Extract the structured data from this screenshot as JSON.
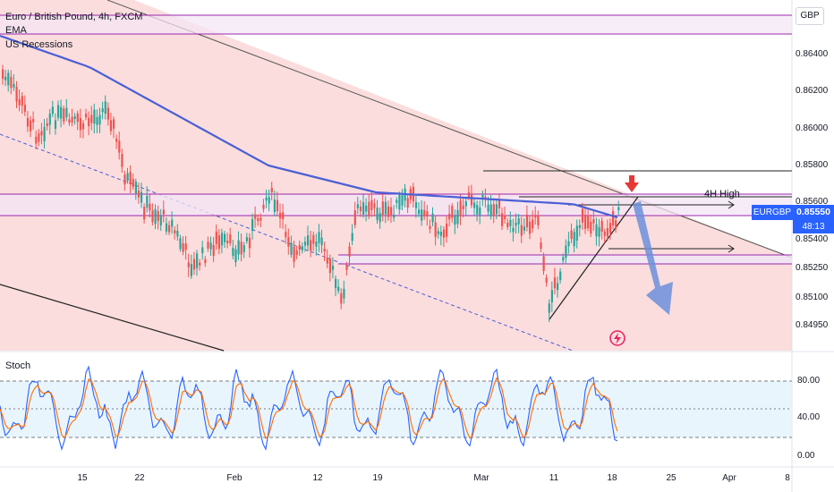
{
  "legend": {
    "symbol_line": "Euro / British Pound, 4h, FXCM",
    "indicator_1": "EMA",
    "indicator_2": "US Recessions"
  },
  "price_axis": {
    "currency": "GBP",
    "ticks": [
      "0.86400",
      "0.86200",
      "0.86000",
      "0.85800",
      "0.85600",
      "0.85400",
      "0.85250",
      "0.85100",
      "0.84950"
    ]
  },
  "price_tag": {
    "symbol": "EURGBP",
    "price": "0.85550",
    "countdown": "48:13",
    "color": "#2962ff"
  },
  "annotation": {
    "label": "4H High"
  },
  "oscillator": {
    "title": "Stoch",
    "ticks": [
      "80.00",
      "40.00",
      "0.00"
    ]
  },
  "time_axis": {
    "labels": [
      "15",
      "22",
      "Feb",
      "12",
      "19",
      "Mar",
      "11",
      "18",
      "25",
      "Apr",
      "8"
    ]
  },
  "colors": {
    "up": "#26a69a",
    "down": "#ef5350",
    "ema": "#4a60d6",
    "channel_fill": "#f9d2d2",
    "zone_line": "#9c27b0",
    "arrow_down": "#e53935",
    "projection_arrow": "#6b8fdc"
  }
}
